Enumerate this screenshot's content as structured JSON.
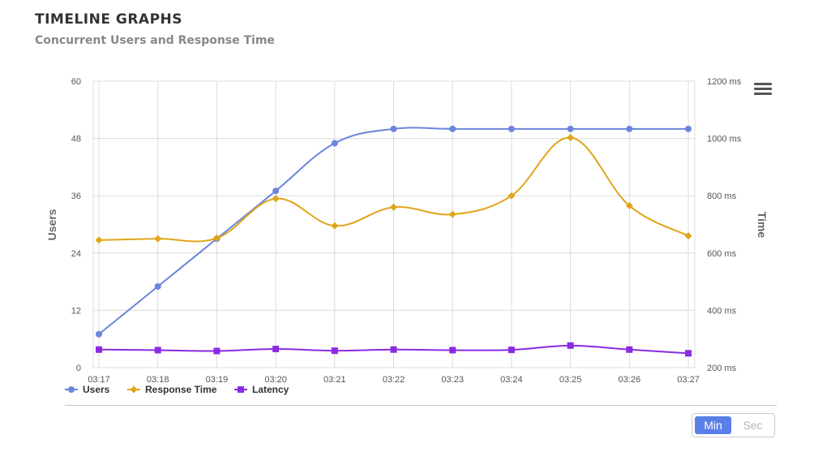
{
  "header": {
    "title": "TIMELINE GRAPHS",
    "subtitle": "Concurrent Users and Response Time"
  },
  "controls": {
    "min_label": "Min",
    "sec_label": "Sec",
    "selected": "Min"
  },
  "colors": {
    "users": "#6a85dc",
    "response_time": "#e0a51a",
    "latency": "#8a2be2",
    "grid": "#dcdcdc",
    "toggle_active": "#5b7fe8"
  },
  "chart_data": {
    "type": "line",
    "title": "",
    "x": [
      "03:17",
      "03:18",
      "03:19",
      "03:20",
      "03:21",
      "03:22",
      "03:23",
      "03:24",
      "03:25",
      "03:26",
      "03:27"
    ],
    "y_left": {
      "label": "Users",
      "ylim": [
        0,
        60
      ],
      "ticks": [
        "0",
        "12",
        "24",
        "36",
        "48",
        "60"
      ]
    },
    "y_right": {
      "label": "Time",
      "ylim": [
        200,
        1200
      ],
      "ticks": [
        "200 ms",
        "400 ms",
        "600 ms",
        "800 ms",
        "1000 ms",
        "1200 ms"
      ]
    },
    "series": [
      {
        "name": "Users",
        "axis": "left",
        "marker": "circle",
        "color": "#6a85dc",
        "values": [
          7,
          17,
          27,
          37,
          47,
          50,
          50,
          50,
          50,
          50,
          50
        ]
      },
      {
        "name": "Response Time",
        "axis": "right",
        "marker": "diamond",
        "color": "#e0a51a",
        "values": [
          645,
          650,
          652,
          790,
          695,
          760,
          735,
          800,
          1003,
          765,
          660
        ]
      },
      {
        "name": "Latency",
        "axis": "right",
        "marker": "square",
        "color": "#8a2be2",
        "values": [
          263,
          261,
          258,
          265,
          259,
          263,
          261,
          262,
          277,
          263,
          250
        ]
      }
    ],
    "grid": true,
    "legend": "bottom-left"
  }
}
